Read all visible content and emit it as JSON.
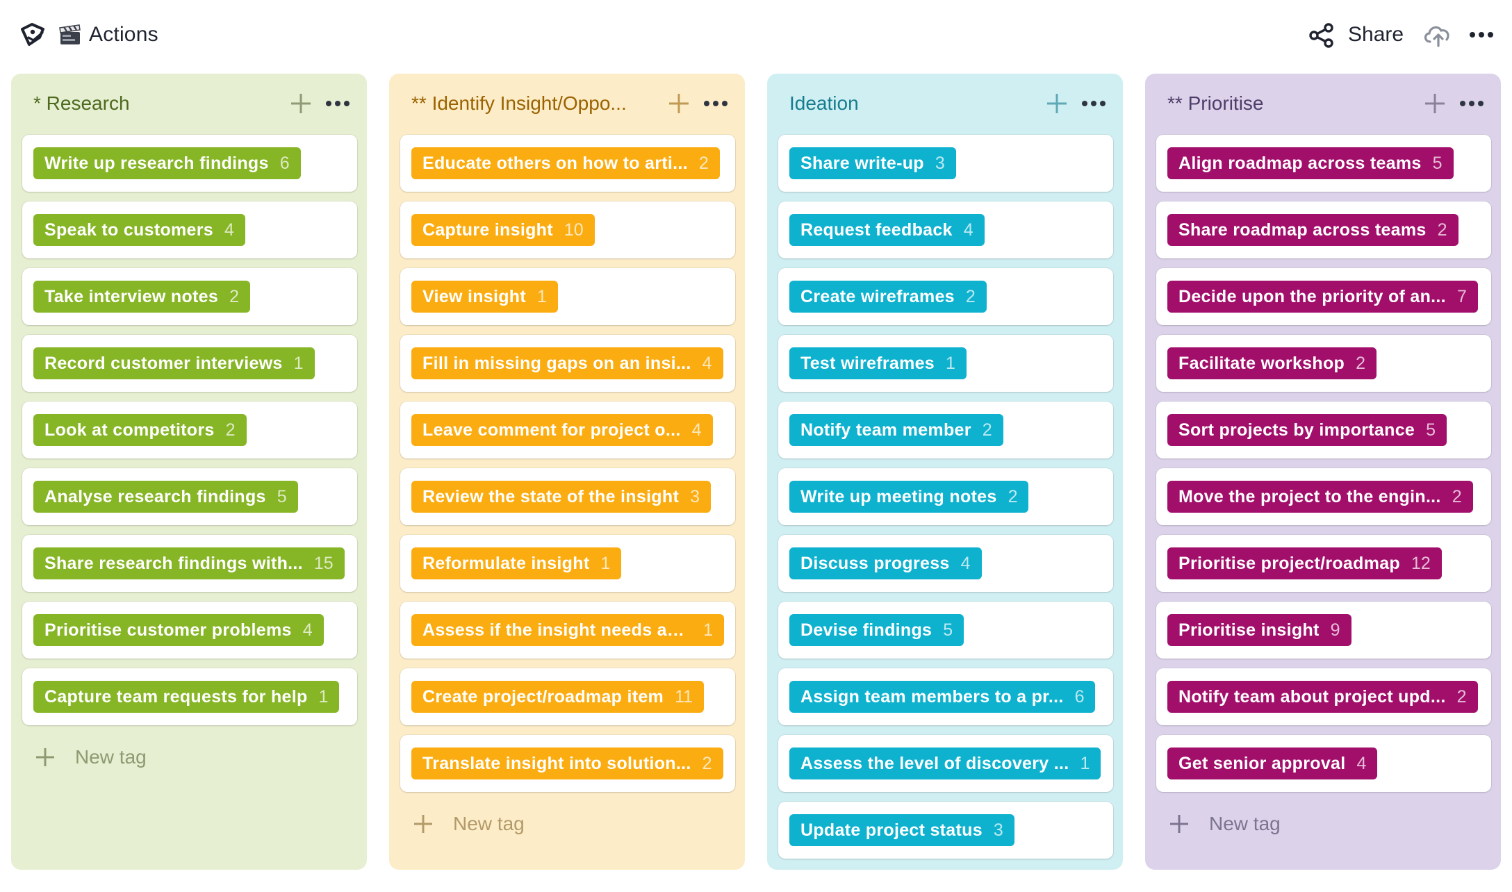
{
  "header": {
    "title": "Actions",
    "share_label": "Share",
    "icons": {
      "logo": "tag-logo-icon",
      "clapper": "clapper-board-icon",
      "share": "share-icon",
      "upload": "cloud-upload-icon",
      "more": "more-icon"
    }
  },
  "colors": {
    "research": "#86b525",
    "identify": "#fbac10",
    "ideation": "#0eb2cf",
    "prioritise": "#a20f6b"
  },
  "new_tag_label": "New tag",
  "columns": [
    {
      "title": "* Research",
      "items": [
        {
          "label": "Write up research findings",
          "count": "6"
        },
        {
          "label": "Speak to customers",
          "count": "4"
        },
        {
          "label": "Take interview notes",
          "count": "2"
        },
        {
          "label": "Record customer interviews",
          "count": "1"
        },
        {
          "label": "Look at competitors",
          "count": "2"
        },
        {
          "label": "Analyse research findings",
          "count": "5"
        },
        {
          "label": "Share research findings with...",
          "count": "15"
        },
        {
          "label": "Prioritise customer problems",
          "count": "4"
        },
        {
          "label": "Capture team requests for help",
          "count": "1"
        }
      ]
    },
    {
      "title": "** Identify Insight/Oppo...",
      "items": [
        {
          "label": "Educate others on how to arti...",
          "count": "2"
        },
        {
          "label": "Capture insight",
          "count": "10"
        },
        {
          "label": "View insight",
          "count": "1"
        },
        {
          "label": "Fill in missing gaps on an insi...",
          "count": "4"
        },
        {
          "label": "Leave comment for project o...",
          "count": "4"
        },
        {
          "label": "Review the state of the insight",
          "count": "3"
        },
        {
          "label": "Reformulate insight",
          "count": "1"
        },
        {
          "label": "Assess if the insight needs ad...",
          "count": "1"
        },
        {
          "label": "Create project/roadmap item",
          "count": "11"
        },
        {
          "label": "Translate insight into solution...",
          "count": "2"
        }
      ]
    },
    {
      "title": "Ideation",
      "items": [
        {
          "label": "Share write-up",
          "count": "3"
        },
        {
          "label": "Request feedback",
          "count": "4"
        },
        {
          "label": "Create wireframes",
          "count": "2"
        },
        {
          "label": "Test wireframes",
          "count": "1"
        },
        {
          "label": "Notify team member",
          "count": "2"
        },
        {
          "label": "Write up meeting notes",
          "count": "2"
        },
        {
          "label": "Discuss progress",
          "count": "4"
        },
        {
          "label": "Devise findings",
          "count": "5"
        },
        {
          "label": "Assign team members to a pr...",
          "count": "6"
        },
        {
          "label": "Assess the level of discovery ...",
          "count": "1"
        },
        {
          "label": "Update project status",
          "count": "3"
        }
      ]
    },
    {
      "title": "** Prioritise",
      "items": [
        {
          "label": "Align roadmap across teams",
          "count": "5"
        },
        {
          "label": "Share roadmap across teams",
          "count": "2"
        },
        {
          "label": "Decide upon the priority of an...",
          "count": "7"
        },
        {
          "label": "Facilitate workshop",
          "count": "2"
        },
        {
          "label": "Sort projects by importance",
          "count": "5"
        },
        {
          "label": "Move the project to the engin...",
          "count": "2"
        },
        {
          "label": "Prioritise project/roadmap",
          "count": "12"
        },
        {
          "label": "Prioritise insight",
          "count": "9"
        },
        {
          "label": "Notify team about project upd...",
          "count": "2"
        },
        {
          "label": "Get senior approval",
          "count": "4"
        }
      ]
    }
  ]
}
